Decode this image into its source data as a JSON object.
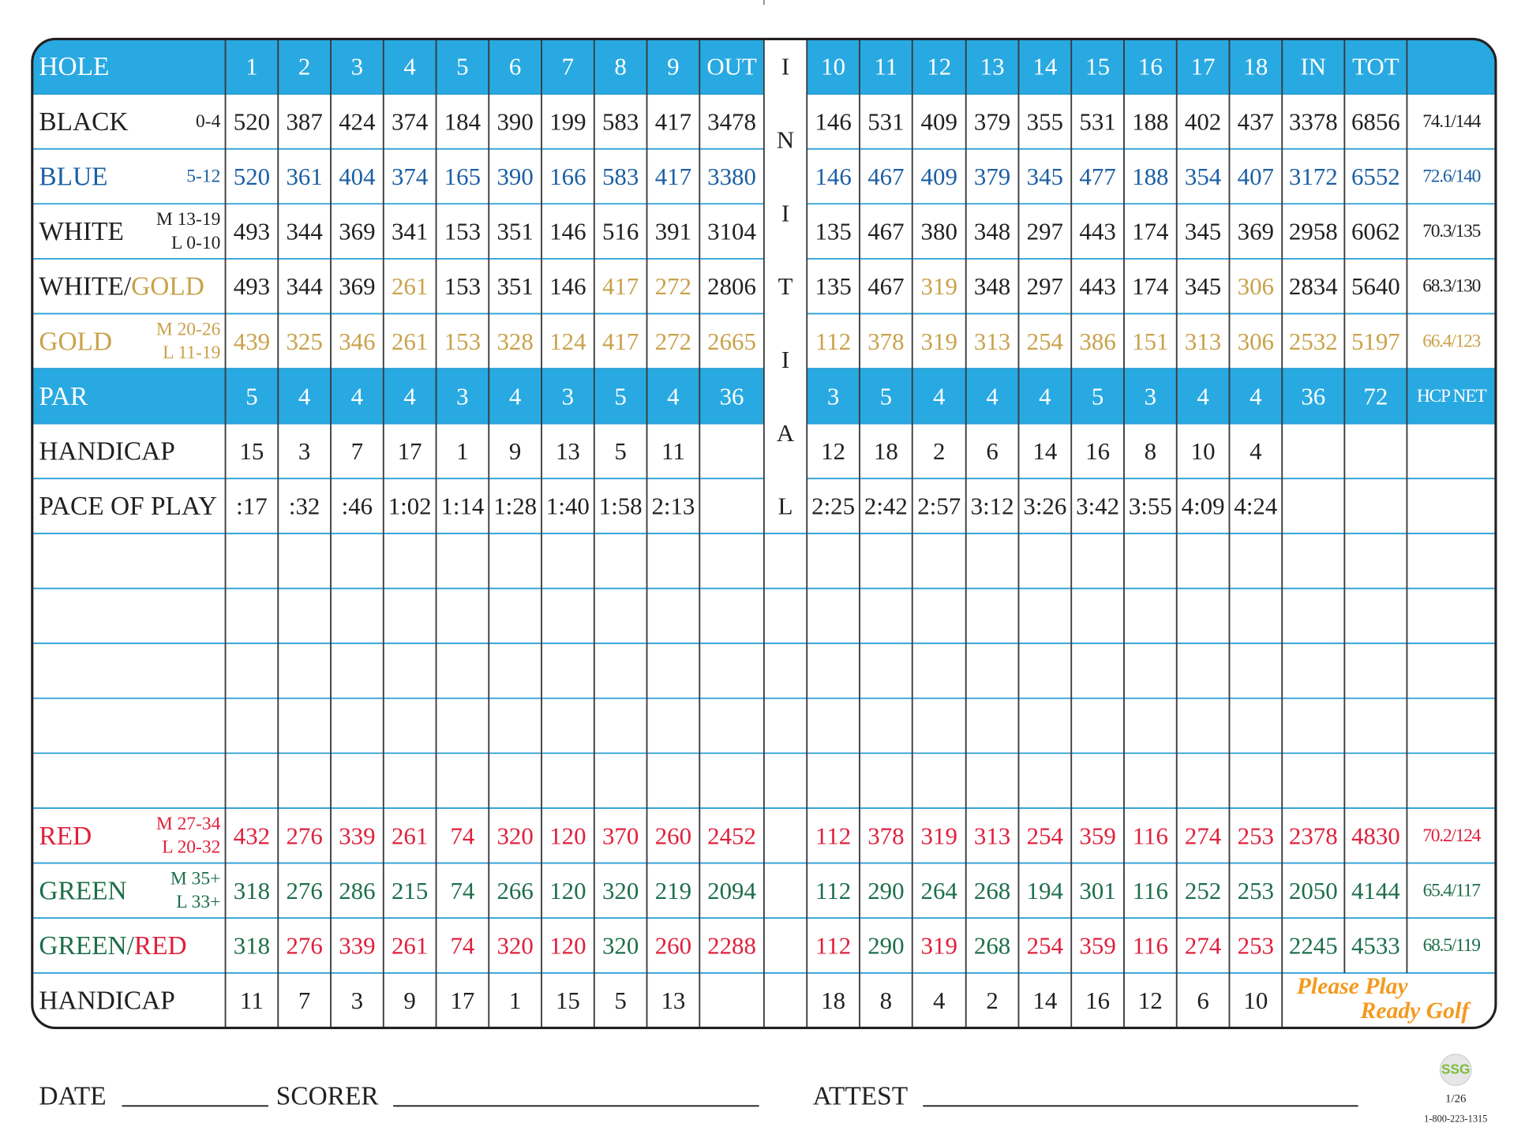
{
  "table": {
    "initial": [
      "I",
      "N",
      "I",
      "T",
      "I",
      "A",
      "L"
    ],
    "top_rows": [
      {
        "label": [
          "HOLE"
        ],
        "fill": "#29a9e1",
        "color": "#ffffff",
        "cells": [
          1,
          2,
          3,
          4,
          5,
          6,
          7,
          8,
          9,
          "OUT",
          10,
          11,
          12,
          13,
          14,
          15,
          16,
          17,
          18,
          "IN",
          "TOT",
          null
        ]
      },
      {
        "label": [
          "BLACK"
        ],
        "sublabel": [
          "0-4"
        ],
        "color": "#231f20",
        "cells": [
          520,
          387,
          424,
          374,
          184,
          390,
          199,
          583,
          417,
          3478,
          146,
          531,
          409,
          379,
          355,
          531,
          188,
          402,
          437,
          3378,
          6856,
          "74.1/144"
        ]
      },
      {
        "label": [
          "BLUE"
        ],
        "sublabel": [
          "5-12"
        ],
        "color": "#1b5fa3",
        "cells": [
          520,
          361,
          404,
          374,
          165,
          390,
          166,
          583,
          417,
          3380,
          146,
          467,
          409,
          379,
          345,
          477,
          188,
          354,
          407,
          3172,
          6552,
          "72.6/140"
        ]
      },
      {
        "label": [
          "WHITE"
        ],
        "sublabel": [
          "M 13-19",
          "L 0-10"
        ],
        "color": "#231f20",
        "cells": [
          493,
          344,
          369,
          341,
          153,
          351,
          146,
          516,
          391,
          3104,
          135,
          467,
          380,
          348,
          297,
          443,
          174,
          345,
          369,
          2958,
          6062,
          "70.3/135"
        ]
      },
      {
        "label": [
          "WHITE/",
          "GOLD"
        ],
        "label_colors": [
          "#231f20",
          "#c9a24a"
        ],
        "color": "#231f20",
        "cells": [
          493,
          344,
          369,
          261,
          153,
          351,
          146,
          417,
          272,
          2806,
          135,
          467,
          319,
          348,
          297,
          443,
          174,
          345,
          306,
          2834,
          5640,
          "68.3/130"
        ],
        "cell_colors": [
          "#231f20",
          "#231f20",
          "#231f20",
          "#c9a24a",
          "#231f20",
          "#231f20",
          "#231f20",
          "#c9a24a",
          "#c9a24a",
          "#231f20",
          "#231f20",
          "#231f20",
          "#c9a24a",
          "#231f20",
          "#231f20",
          "#231f20",
          "#231f20",
          "#231f20",
          "#c9a24a",
          "#231f20",
          "#231f20",
          "#231f20"
        ]
      },
      {
        "label": [
          "GOLD"
        ],
        "sublabel": [
          "M 20-26",
          "L 11-19"
        ],
        "color": "#c9a24a",
        "cells": [
          439,
          325,
          346,
          261,
          153,
          328,
          124,
          417,
          272,
          2665,
          112,
          378,
          319,
          313,
          254,
          386,
          151,
          313,
          306,
          2532,
          5197,
          "66.4/123"
        ]
      },
      {
        "label": [
          "PAR"
        ],
        "fill": "#29a9e1",
        "color": "#ffffff",
        "cells": [
          5,
          4,
          4,
          4,
          3,
          4,
          3,
          5,
          4,
          36,
          3,
          5,
          4,
          4,
          4,
          5,
          3,
          4,
          4,
          36,
          72,
          "HCP NET"
        ]
      },
      {
        "label": [
          "HANDICAP"
        ],
        "color": "#231f20",
        "cells": [
          15,
          3,
          7,
          17,
          1,
          9,
          13,
          5,
          11,
          null,
          12,
          18,
          2,
          6,
          14,
          16,
          8,
          10,
          4,
          null,
          null,
          null
        ]
      },
      {
        "label": [
          "PACE OF PLAY"
        ],
        "color": "#231f20",
        "cells": [
          ":17",
          ":32",
          ":46",
          "1:02",
          "1:14",
          "1:28",
          "1:40",
          "1:58",
          "2:13",
          null,
          "2:25",
          "2:42",
          "2:57",
          "3:12",
          "3:26",
          "3:42",
          "3:55",
          "4:09",
          "4:24",
          null,
          null,
          null
        ]
      }
    ],
    "blank_rows": 5,
    "bottom_rows": [
      {
        "label": [
          "RED"
        ],
        "sublabel": [
          "M 27-34",
          "L 20-32"
        ],
        "color": "#e0203c",
        "cells": [
          432,
          276,
          339,
          261,
          74,
          320,
          120,
          370,
          260,
          2452,
          112,
          378,
          319,
          313,
          254,
          359,
          116,
          274,
          253,
          2378,
          4830,
          "70.2/124"
        ]
      },
      {
        "label": [
          "GREEN"
        ],
        "sublabel": [
          "M 35+",
          "L 33+"
        ],
        "color": "#1d6e4b",
        "cells": [
          318,
          276,
          286,
          215,
          74,
          266,
          120,
          320,
          219,
          2094,
          112,
          290,
          264,
          268,
          194,
          301,
          116,
          252,
          253,
          2050,
          4144,
          "65.4/117"
        ]
      },
      {
        "label": [
          "GREEN/",
          "RED"
        ],
        "label_colors": [
          "#1d6e4b",
          "#e0203c"
        ],
        "color": "#1d6e4b",
        "cells": [
          318,
          276,
          339,
          261,
          74,
          320,
          120,
          320,
          260,
          2288,
          112,
          290,
          319,
          268,
          254,
          359,
          116,
          274,
          253,
          2245,
          4533,
          "68.5/119"
        ],
        "cell_colors": [
          "#1d6e4b",
          "#e0203c",
          "#e0203c",
          "#e0203c",
          "#e0203c",
          "#e0203c",
          "#e0203c",
          "#1d6e4b",
          "#e0203c",
          "#e0203c",
          "#e0203c",
          "#1d6e4b",
          "#e0203c",
          "#1d6e4b",
          "#e0203c",
          "#e0203c",
          "#e0203c",
          "#e0203c",
          "#e0203c",
          "#1d6e4b",
          "#1d6e4b",
          "#1d6e4b"
        ]
      },
      {
        "label": [
          "HANDICAP"
        ],
        "color": "#231f20",
        "cells": [
          11,
          7,
          3,
          9,
          17,
          1,
          15,
          5,
          13,
          null,
          18,
          8,
          4,
          2,
          14,
          16,
          12,
          6,
          10,
          null,
          null,
          null
        ]
      }
    ],
    "note": [
      "Please Play",
      "Ready Golf"
    ],
    "note_color": "#f39a1e"
  },
  "footer": {
    "fields": [
      "DATE",
      "SCORER",
      "ATTEST"
    ],
    "logo": "SSG",
    "code": "1/26",
    "phone": "1-800-223-1315"
  }
}
